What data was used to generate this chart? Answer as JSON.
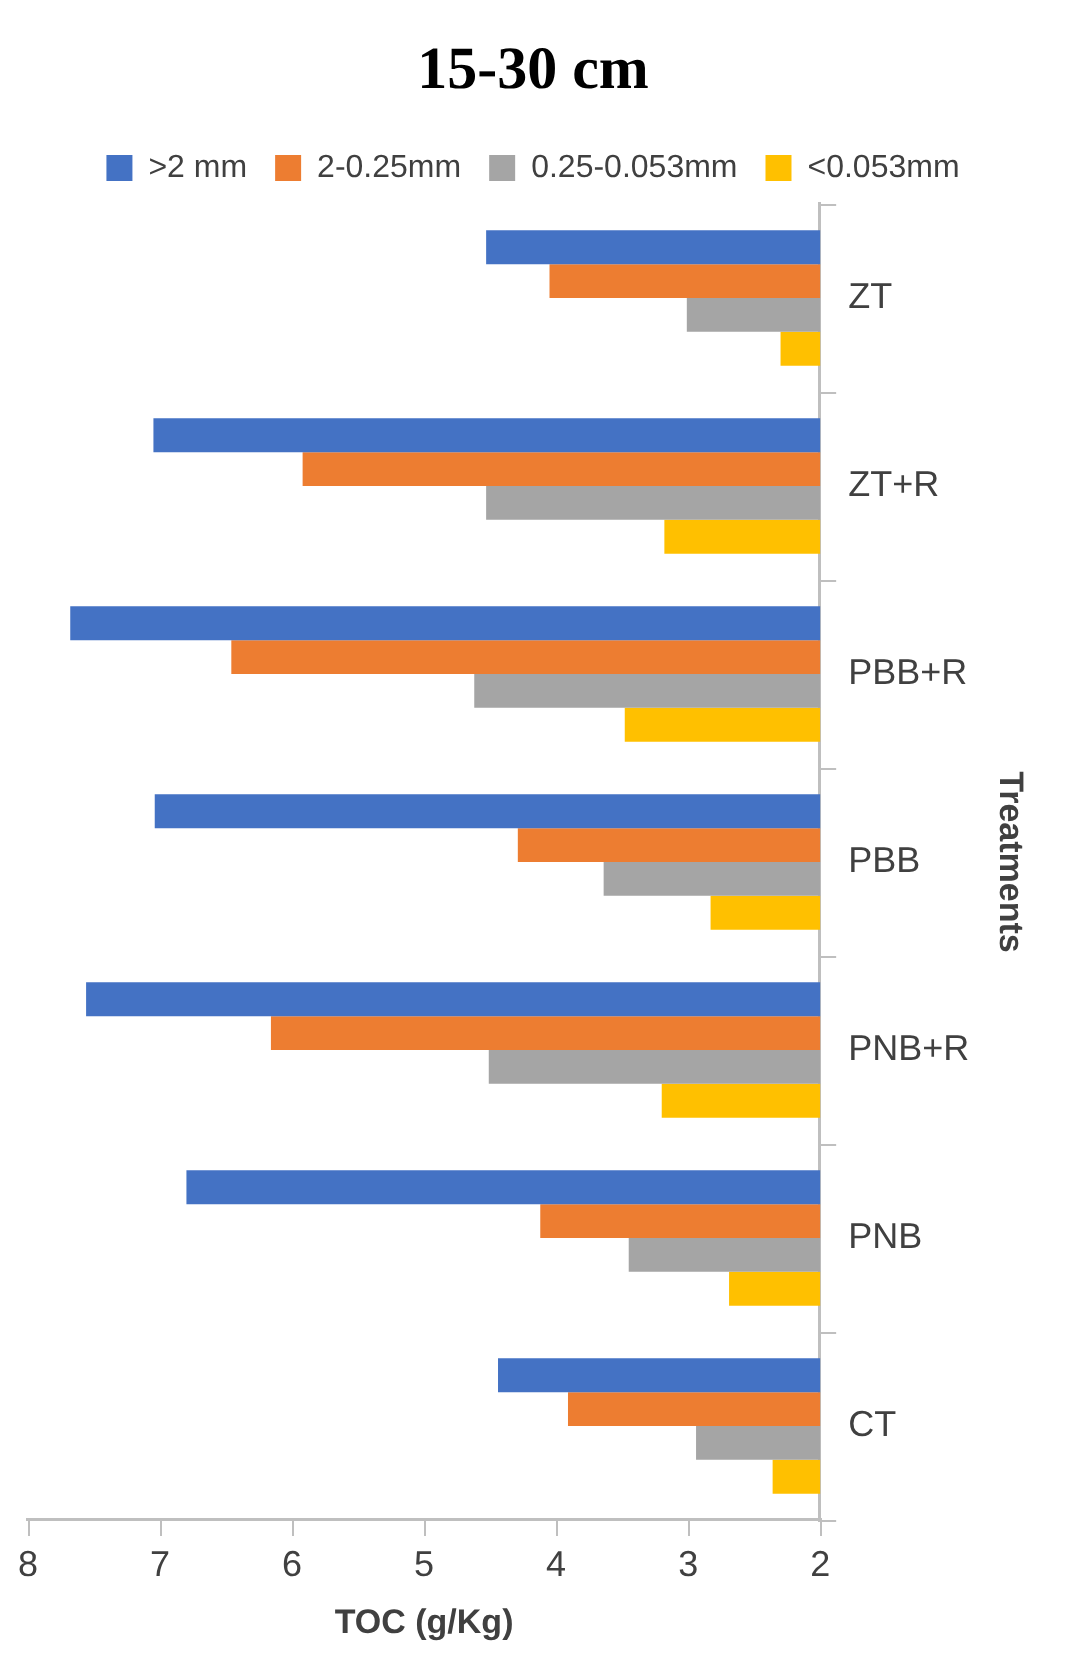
{
  "chart_data": {
    "type": "bar",
    "orientation": "horizontal",
    "title": "15-30 cm",
    "xlabel": "TOC (g/Kg)",
    "ylabel": "Treatments",
    "categories": [
      "ZT",
      "ZT+R",
      "PBB+R",
      "PBB",
      "PNB+R",
      "PNB",
      "CT"
    ],
    "series": [
      {
        "name": ">2 mm",
        "color": "#4472c4",
        "values": [
          4.53,
          7.05,
          7.68,
          7.04,
          7.56,
          6.8,
          4.44
        ]
      },
      {
        "name": "2-0.25mm",
        "color": "#ed7d31",
        "values": [
          4.05,
          5.92,
          6.46,
          4.29,
          6.16,
          4.12,
          3.91
        ]
      },
      {
        "name": "0.25-0.053mm",
        "color": "#a5a5a5",
        "values": [
          3.01,
          4.53,
          4.62,
          3.64,
          4.51,
          3.45,
          2.94
        ]
      },
      {
        "name": "<0.053mm",
        "color": "#ffc000",
        "values": [
          2.3,
          3.18,
          3.48,
          2.83,
          3.2,
          2.69,
          2.36
        ]
      }
    ],
    "xlim": [
      8,
      2
    ],
    "xticks": [
      8,
      7,
      6,
      5,
      4,
      3,
      2
    ],
    "grid": false,
    "legend": "top"
  }
}
